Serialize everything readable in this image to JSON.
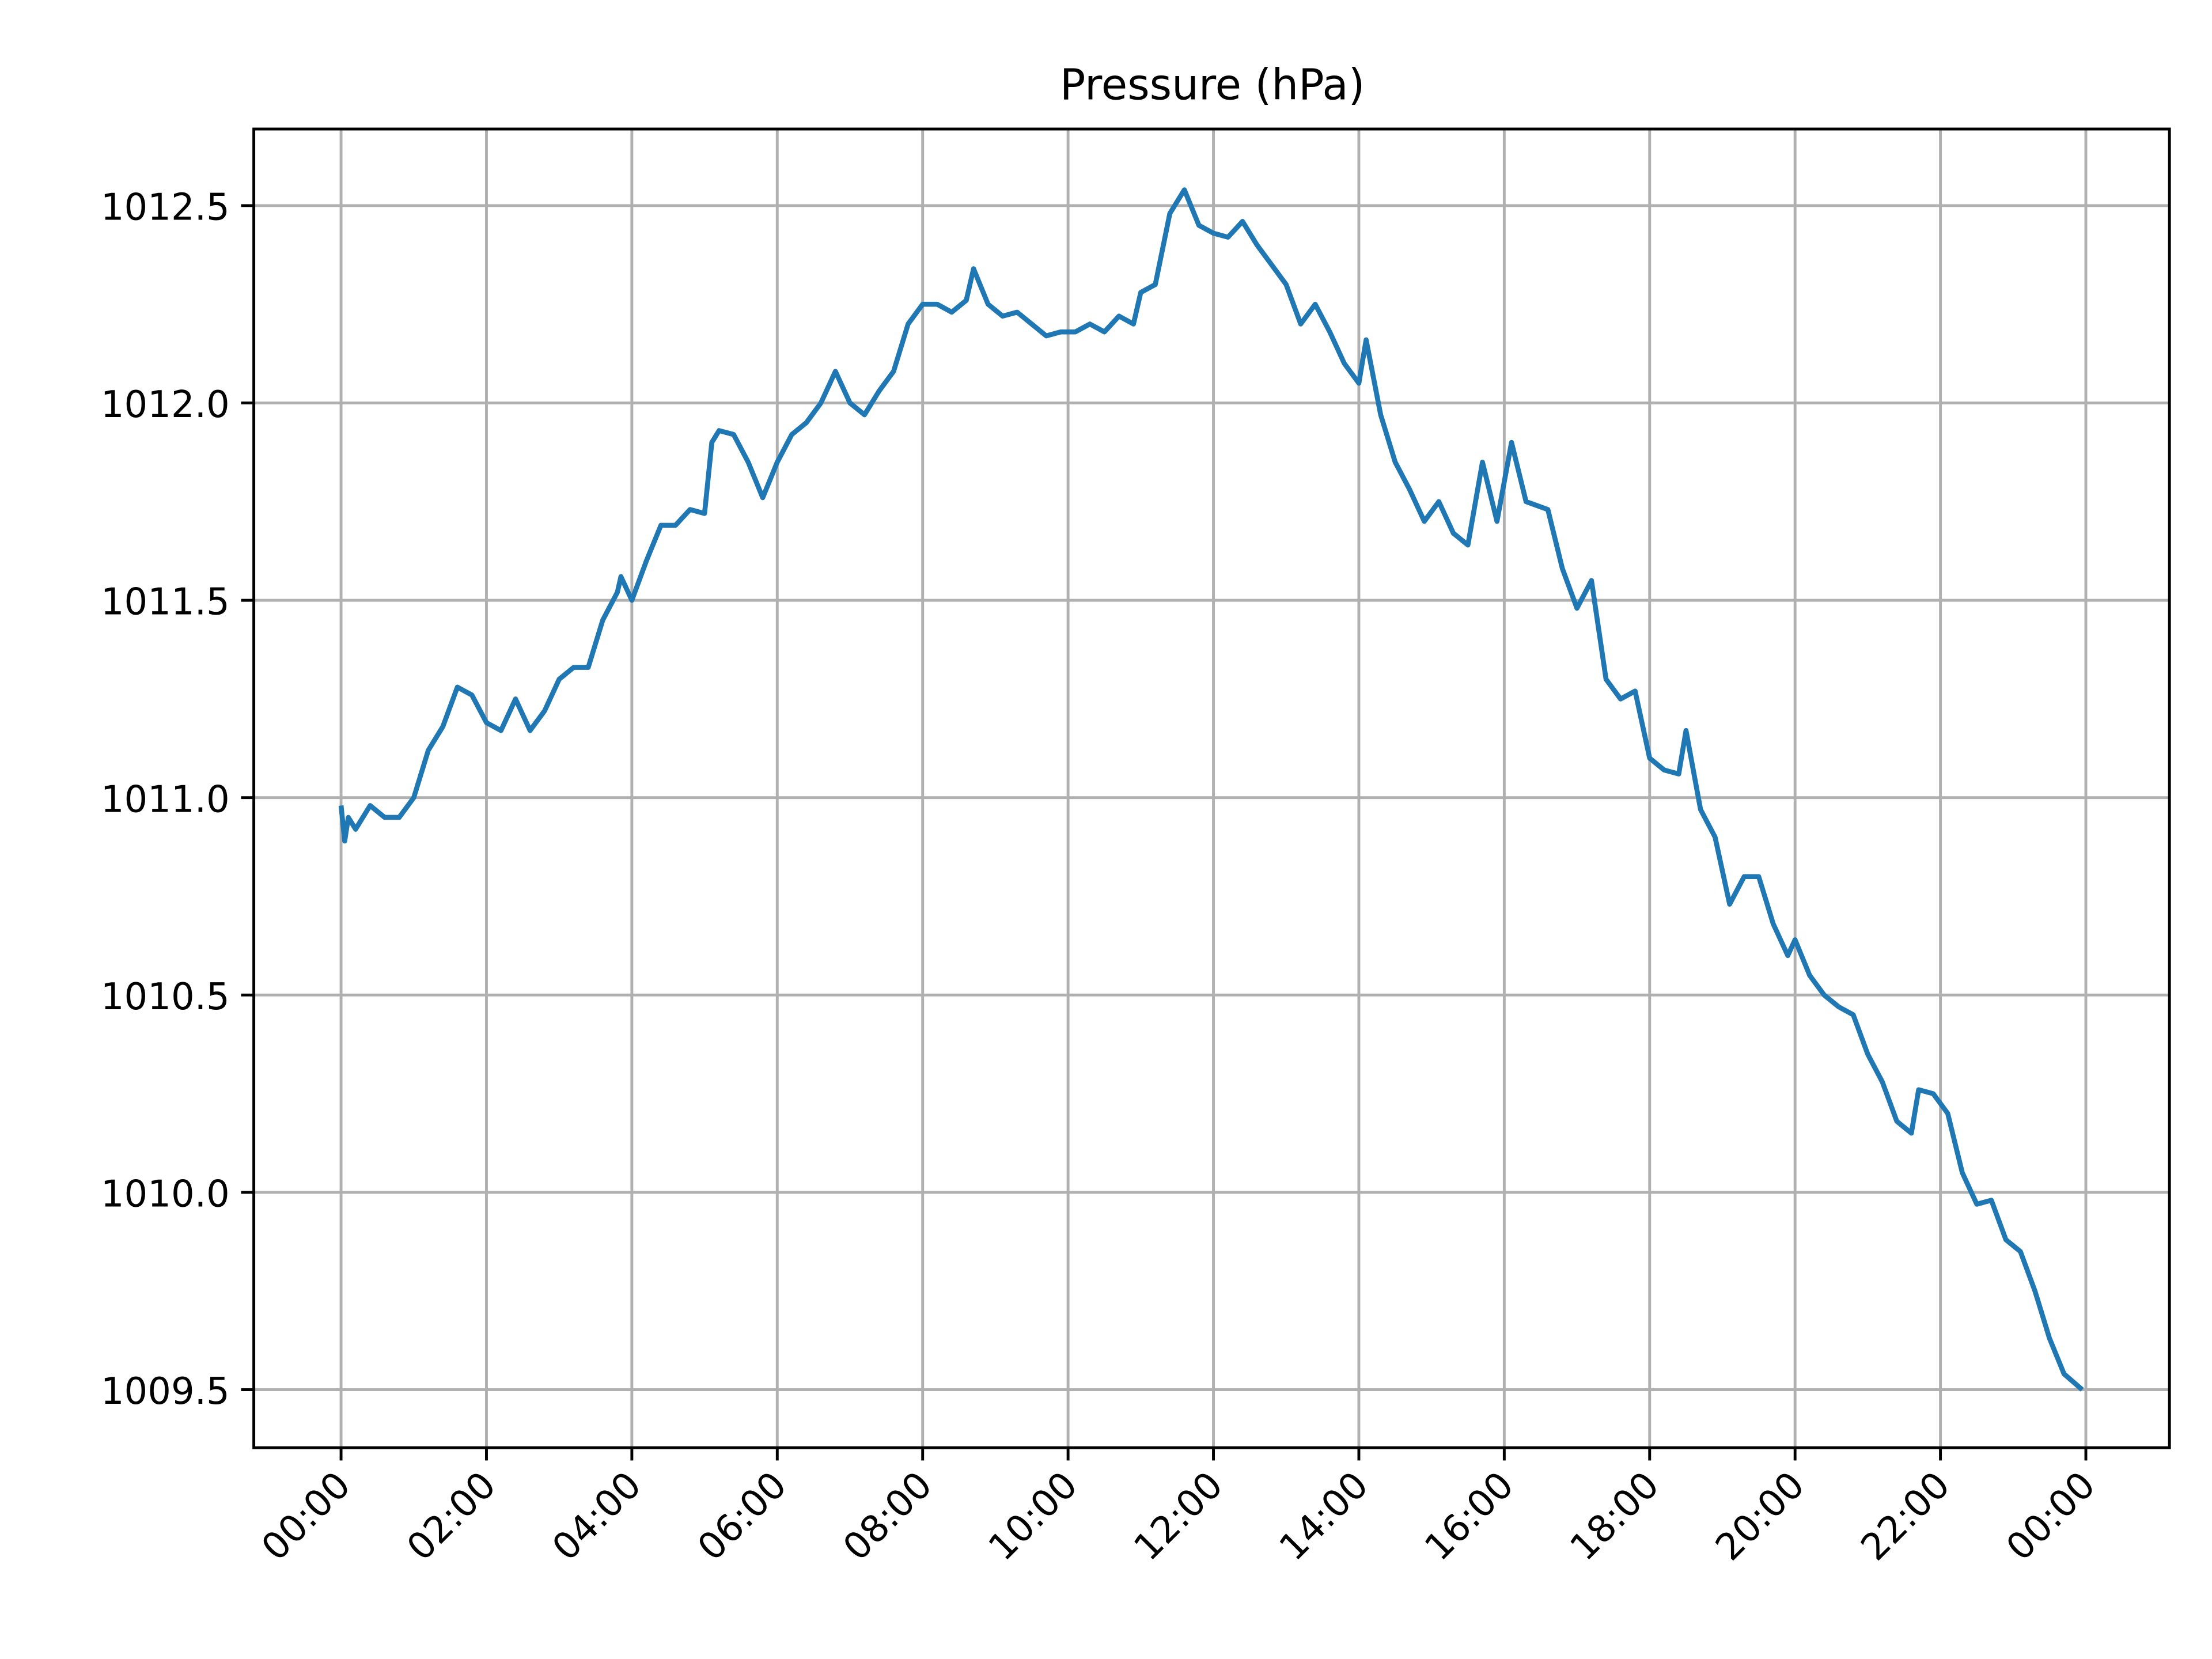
{
  "chart_data": {
    "type": "line",
    "title": "Pressure (hPa)",
    "x": [
      0.0,
      0.05,
      0.1,
      0.2,
      0.4,
      0.6,
      0.8,
      1.0,
      1.2,
      1.4,
      1.6,
      1.8,
      2.0,
      2.2,
      2.4,
      2.6,
      2.8,
      3.0,
      3.2,
      3.4,
      3.6,
      3.8,
      3.85,
      4.0,
      4.2,
      4.4,
      4.6,
      4.8,
      5.0,
      5.1,
      5.2,
      5.4,
      5.6,
      5.8,
      6.0,
      6.2,
      6.4,
      6.6,
      6.8,
      7.0,
      7.2,
      7.4,
      7.6,
      7.8,
      8.0,
      8.2,
      8.4,
      8.6,
      8.7,
      8.9,
      9.1,
      9.3,
      9.5,
      9.7,
      9.9,
      10.1,
      10.3,
      10.5,
      10.7,
      10.9,
      11.0,
      11.2,
      11.4,
      11.6,
      11.8,
      12.0,
      12.2,
      12.4,
      12.6,
      12.8,
      13.0,
      13.2,
      13.4,
      13.6,
      13.8,
      14.0,
      14.1,
      14.3,
      14.5,
      14.7,
      14.9,
      15.1,
      15.3,
      15.5,
      15.7,
      15.9,
      16.1,
      16.3,
      16.6,
      16.8,
      17.0,
      17.2,
      17.4,
      17.6,
      17.8,
      18.0,
      18.2,
      18.4,
      18.5,
      18.7,
      18.9,
      19.1,
      19.3,
      19.5,
      19.7,
      19.9,
      20.0,
      20.2,
      20.4,
      20.6,
      20.8,
      21.0,
      21.2,
      21.4,
      21.6,
      21.7,
      21.9,
      22.1,
      22.3,
      22.5,
      22.7,
      22.9,
      23.1,
      23.3,
      23.5,
      23.7,
      23.95
    ],
    "series": [
      {
        "name": "Pressure",
        "color": "#1f77b4",
        "values": [
          1010.98,
          1010.89,
          1010.95,
          1010.92,
          1010.98,
          1010.95,
          1010.95,
          1011.0,
          1011.12,
          1011.18,
          1011.28,
          1011.26,
          1011.19,
          1011.17,
          1011.25,
          1011.17,
          1011.22,
          1011.3,
          1011.33,
          1011.33,
          1011.45,
          1011.52,
          1011.56,
          1011.5,
          1011.6,
          1011.69,
          1011.69,
          1011.73,
          1011.72,
          1011.9,
          1011.93,
          1011.92,
          1011.85,
          1011.76,
          1011.85,
          1011.92,
          1011.95,
          1012.0,
          1012.08,
          1012.0,
          1011.97,
          1012.03,
          1012.08,
          1012.2,
          1012.25,
          1012.25,
          1012.23,
          1012.26,
          1012.34,
          1012.25,
          1012.22,
          1012.23,
          1012.2,
          1012.17,
          1012.18,
          1012.18,
          1012.2,
          1012.18,
          1012.22,
          1012.2,
          1012.28,
          1012.3,
          1012.48,
          1012.54,
          1012.45,
          1012.43,
          1012.42,
          1012.46,
          1012.4,
          1012.35,
          1012.3,
          1012.2,
          1012.25,
          1012.18,
          1012.1,
          1012.05,
          1012.16,
          1011.97,
          1011.85,
          1011.78,
          1011.7,
          1011.75,
          1011.67,
          1011.64,
          1011.85,
          1011.7,
          1011.9,
          1011.75,
          1011.73,
          1011.58,
          1011.48,
          1011.55,
          1011.3,
          1011.25,
          1011.27,
          1011.1,
          1011.07,
          1011.06,
          1011.17,
          1010.97,
          1010.9,
          1010.73,
          1010.8,
          1010.8,
          1010.68,
          1010.6,
          1010.64,
          1010.55,
          1010.5,
          1010.47,
          1010.45,
          1010.35,
          1010.28,
          1010.18,
          1010.15,
          1010.26,
          1010.25,
          1010.2,
          1010.05,
          1009.97,
          1009.98,
          1009.88,
          1009.85,
          1009.75,
          1009.63,
          1009.54,
          1009.5
        ]
      }
    ],
    "xlim": [
      -1.2,
      25.15
    ],
    "xticks": [
      {
        "value": 0,
        "label": "00:00"
      },
      {
        "value": 2,
        "label": "02:00"
      },
      {
        "value": 4,
        "label": "04:00"
      },
      {
        "value": 6,
        "label": "06:00"
      },
      {
        "value": 8,
        "label": "08:00"
      },
      {
        "value": 10,
        "label": "10:00"
      },
      {
        "value": 12,
        "label": "12:00"
      },
      {
        "value": 14,
        "label": "14:00"
      },
      {
        "value": 16,
        "label": "16:00"
      },
      {
        "value": 18,
        "label": "18:00"
      },
      {
        "value": 20,
        "label": "20:00"
      },
      {
        "value": 22,
        "label": "22:00"
      },
      {
        "value": 24,
        "label": "00:00"
      }
    ],
    "ylim": [
      1009.353,
      1012.694
    ],
    "yticks": [
      {
        "value": 1009.5,
        "label": "1009.5"
      },
      {
        "value": 1010,
        "label": "1010.0"
      },
      {
        "value": 1010.5,
        "label": "1010.5"
      },
      {
        "value": 1011,
        "label": "1011.0"
      },
      {
        "value": 1011.5,
        "label": "1011.5"
      },
      {
        "value": 1012,
        "label": "1012.0"
      },
      {
        "value": 1012.5,
        "label": "1012.5"
      }
    ],
    "grid": true
  }
}
